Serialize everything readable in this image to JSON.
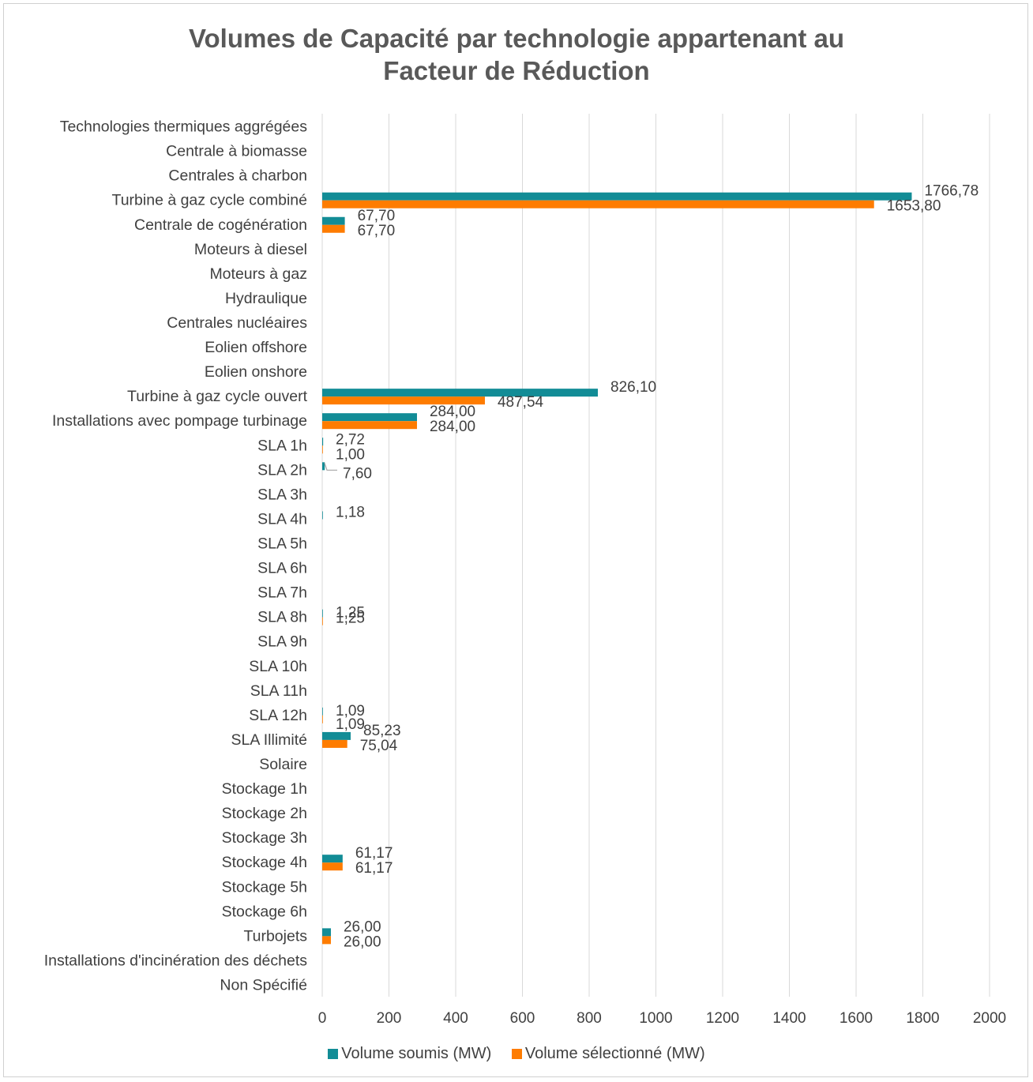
{
  "chart_data": {
    "type": "bar",
    "orientation": "horizontal",
    "title": "Volumes de Capacité par technologie appartenant au Facteur de Réduction",
    "title_lines": [
      "Volumes de Capacité par technologie appartenant au",
      "Facteur de Réduction"
    ],
    "categories": [
      "Technologies thermiques aggrégées",
      "Centrale à biomasse",
      "Centrales à charbon",
      "Turbine à gaz cycle combiné",
      "Centrale de cogénération",
      "Moteurs à diesel",
      "Moteurs à gaz",
      "Hydraulique",
      "Centrales nucléaires",
      "Eolien offshore",
      "Eolien onshore",
      "Turbine à gaz cycle ouvert",
      "Installations avec pompage turbinage",
      "SLA 1h",
      "SLA 2h",
      "SLA 3h",
      "SLA 4h",
      "SLA 5h",
      "SLA 6h",
      "SLA 7h",
      "SLA 8h",
      "SLA 9h",
      "SLA 10h",
      "SLA 11h",
      "SLA 12h",
      "SLA Illimité",
      "Solaire",
      "Stockage 1h",
      "Stockage 2h",
      "Stockage 3h",
      "Stockage 4h",
      "Stockage 5h",
      "Stockage 6h",
      "Turbojets",
      "Installations d'incinération des déchets",
      "Non Spécifié"
    ],
    "series": [
      {
        "name": "Volume soumis (MW)",
        "color": "#128c96",
        "values": [
          null,
          null,
          null,
          1766.78,
          67.7,
          null,
          null,
          null,
          null,
          null,
          null,
          826.1,
          284.0,
          2.72,
          7.6,
          null,
          1.18,
          null,
          null,
          null,
          1.25,
          null,
          null,
          null,
          1.09,
          85.23,
          null,
          null,
          null,
          null,
          61.17,
          null,
          null,
          26.0,
          null,
          null
        ],
        "labels": [
          null,
          null,
          null,
          "1766,78",
          "67,70",
          null,
          null,
          null,
          null,
          null,
          null,
          "826,10",
          "284,00",
          "2,72",
          "7,60",
          null,
          "1,18",
          null,
          null,
          null,
          "1,25",
          null,
          null,
          null,
          "1,09",
          "85,23",
          null,
          null,
          null,
          null,
          "61,17",
          null,
          null,
          "26,00",
          null,
          null
        ]
      },
      {
        "name": "Volume sélectionné (MW)",
        "color": "#fe7c00",
        "values": [
          null,
          null,
          null,
          1653.8,
          67.7,
          null,
          null,
          null,
          null,
          null,
          null,
          487.54,
          284.0,
          1.0,
          null,
          null,
          null,
          null,
          null,
          null,
          1.25,
          null,
          null,
          null,
          1.09,
          75.04,
          null,
          null,
          null,
          null,
          61.17,
          null,
          null,
          26.0,
          null,
          null
        ],
        "labels": [
          null,
          null,
          null,
          "1653,80",
          "67,70",
          null,
          null,
          null,
          null,
          null,
          null,
          "487,54",
          "284,00",
          "1,00",
          null,
          null,
          null,
          null,
          null,
          null,
          "1,25",
          null,
          null,
          null,
          "1,09",
          "75,04",
          null,
          null,
          null,
          null,
          "61,17",
          null,
          null,
          "26,00",
          null,
          null
        ]
      }
    ],
    "xlim": [
      0,
      2000
    ],
    "xticks": [
      0,
      200,
      400,
      600,
      800,
      1000,
      1200,
      1400,
      1600,
      1800,
      2000
    ],
    "xticklabels": [
      "0",
      "200",
      "400",
      "600",
      "800",
      "1000",
      "1200",
      "1400",
      "1600",
      "1800",
      "2000"
    ],
    "xlabel": "",
    "ylabel": "",
    "grid": "vertical",
    "legend_position": "bottom",
    "gridline_color": "#d9d9d9"
  }
}
